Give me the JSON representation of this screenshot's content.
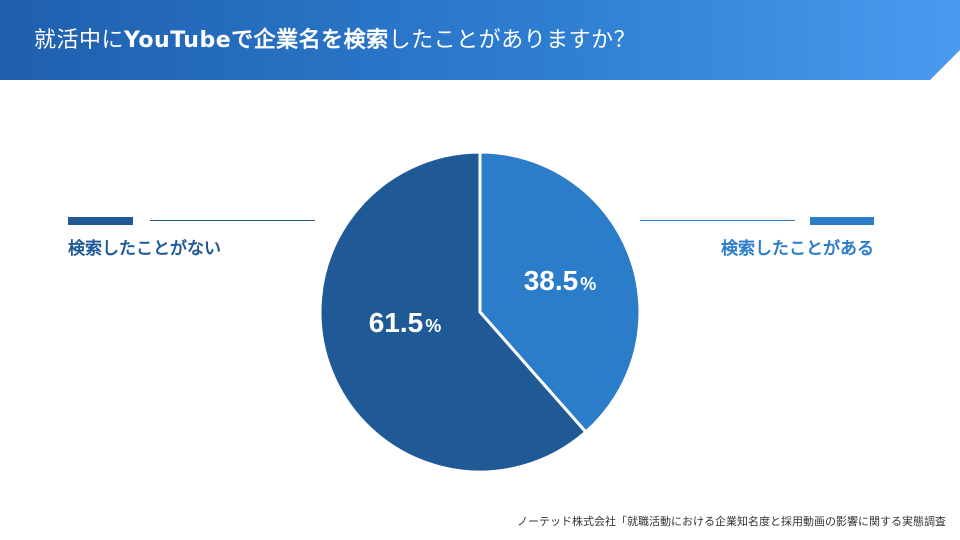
{
  "header": {
    "title_pre": "就活中に",
    "title_bold": "YouTubeで企業名を検索",
    "title_post": "したことがありますか？"
  },
  "chart_data": {
    "type": "pie",
    "categories": [
      "検索したことがある",
      "検索したことがない"
    ],
    "values": [
      38.5,
      61.5
    ],
    "unit": "%",
    "value_labels": [
      "38.5",
      "61.5"
    ],
    "colors": [
      "#2b7cc9",
      "#1f5a97"
    ],
    "title": "就活中にYouTubeで企業名を検索したことがありますか？"
  },
  "legend": {
    "left_label": "検索したことがない",
    "left_color": "#1f5a97",
    "right_label": "検索したことがある",
    "right_color": "#2b7cc9"
  },
  "source": "ノーテッド株式会社「就職活動における企業知名度と採用動画の影響に関する実態調査"
}
